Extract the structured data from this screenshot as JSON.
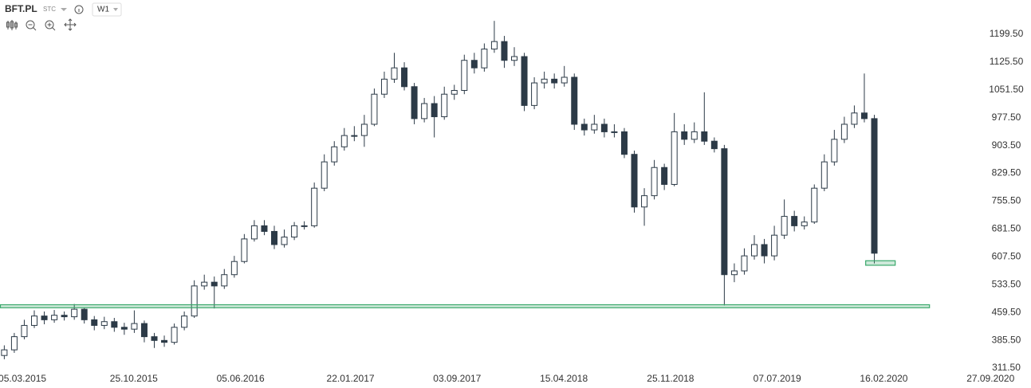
{
  "toolbar": {
    "symbol": "BFT.PL",
    "group": "STC",
    "interval": "W1"
  },
  "chart_data": {
    "type": "candlestick",
    "x": [
      "2015-01-26",
      "2015-02-16",
      "2015-03-09",
      "2015-03-30",
      "2015-04-20",
      "2015-05-11",
      "2015-06-01",
      "2015-06-22",
      "2015-07-13",
      "2015-08-03",
      "2015-08-24",
      "2015-09-14",
      "2015-10-05",
      "2015-10-26",
      "2015-11-16",
      "2015-12-07",
      "2015-12-28",
      "2016-01-18",
      "2016-02-08",
      "2016-02-29",
      "2016-03-21",
      "2016-04-11",
      "2016-05-02",
      "2016-05-23",
      "2016-06-13",
      "2016-07-04",
      "2016-07-25",
      "2016-08-15",
      "2016-09-05",
      "2016-09-26",
      "2016-10-17",
      "2016-11-07",
      "2016-11-28",
      "2016-12-19",
      "2017-01-09",
      "2017-01-30",
      "2017-02-20",
      "2017-03-13",
      "2017-04-03",
      "2017-04-24",
      "2017-05-15",
      "2017-06-05",
      "2017-06-26",
      "2017-07-17",
      "2017-08-07",
      "2017-08-28",
      "2017-09-18",
      "2017-10-09",
      "2017-10-30",
      "2017-11-20",
      "2017-12-11",
      "2018-01-01",
      "2018-01-22",
      "2018-02-12",
      "2018-03-05",
      "2018-03-26",
      "2018-04-16",
      "2018-05-07",
      "2018-05-28",
      "2018-06-18",
      "2018-07-09",
      "2018-07-30",
      "2018-08-20",
      "2018-09-10",
      "2018-10-01",
      "2018-10-22",
      "2018-11-12",
      "2018-12-03",
      "2018-12-24",
      "2019-01-14",
      "2019-02-04",
      "2019-02-25",
      "2019-03-18",
      "2019-04-08",
      "2019-04-29",
      "2019-05-20",
      "2019-06-10",
      "2019-07-01",
      "2019-07-22",
      "2019-08-12",
      "2019-09-02",
      "2019-09-23",
      "2019-10-14",
      "2019-11-04",
      "2019-11-25",
      "2019-12-16",
      "2020-01-06",
      "2020-01-27"
    ],
    "open": [
      345,
      360,
      395,
      425,
      450,
      440,
      452,
      448,
      468,
      440,
      425,
      435,
      420,
      415,
      430,
      395,
      385,
      380,
      420,
      450,
      530,
      540,
      530,
      560,
      595,
      655,
      690,
      675,
      640,
      660,
      690,
      690,
      790,
      860,
      900,
      930,
      930,
      960,
      1040,
      1080,
      1110,
      1060,
      975,
      1015,
      980,
      1040,
      1050,
      1130,
      1110,
      1160,
      1180,
      1130,
      1140,
      1010,
      1070,
      1080,
      1070,
      1085,
      960,
      945,
      960,
      940,
      940,
      880,
      740,
      770,
      845,
      800,
      940,
      920,
      940,
      915,
      895,
      560,
      570,
      610,
      640,
      610,
      665,
      715,
      690,
      700,
      790,
      860,
      920,
      960,
      990,
      975
    ],
    "high": [
      372,
      405,
      440,
      465,
      462,
      466,
      462,
      482,
      472,
      450,
      448,
      445,
      432,
      465,
      438,
      405,
      398,
      430,
      462,
      545,
      560,
      555,
      575,
      610,
      668,
      705,
      705,
      690,
      680,
      700,
      702,
      805,
      880,
      915,
      950,
      955,
      985,
      1055,
      1100,
      1150,
      1125,
      1070,
      1030,
      1035,
      1060,
      1065,
      1145,
      1150,
      1175,
      1235,
      1195,
      1165,
      1150,
      1085,
      1100,
      1095,
      1115,
      1095,
      975,
      985,
      975,
      960,
      950,
      890,
      790,
      865,
      855,
      990,
      960,
      965,
      1045,
      925,
      905,
      590,
      630,
      665,
      655,
      690,
      760,
      730,
      715,
      800,
      880,
      945,
      980,
      1010,
      1095,
      985
    ],
    "low": [
      335,
      352,
      388,
      418,
      428,
      432,
      438,
      440,
      430,
      412,
      415,
      408,
      400,
      405,
      380,
      365,
      368,
      374,
      412,
      445,
      520,
      470,
      522,
      552,
      590,
      648,
      665,
      628,
      632,
      652,
      680,
      685,
      782,
      850,
      890,
      915,
      900,
      955,
      1030,
      1070,
      1050,
      960,
      965,
      925,
      972,
      1025,
      1040,
      1095,
      1100,
      1150,
      1110,
      1115,
      995,
      1000,
      1055,
      1055,
      1060,
      945,
      930,
      935,
      925,
      925,
      870,
      725,
      690,
      760,
      785,
      795,
      905,
      910,
      905,
      885,
      478,
      540,
      560,
      600,
      590,
      598,
      655,
      675,
      680,
      695,
      782,
      850,
      910,
      950,
      965,
      590
    ],
    "close": [
      360,
      395,
      425,
      450,
      440,
      452,
      448,
      468,
      440,
      425,
      435,
      420,
      415,
      430,
      395,
      385,
      380,
      420,
      450,
      530,
      540,
      530,
      560,
      595,
      655,
      690,
      675,
      640,
      660,
      690,
      690,
      790,
      860,
      900,
      930,
      930,
      960,
      1040,
      1080,
      1110,
      1060,
      975,
      1015,
      980,
      1040,
      1050,
      1130,
      1110,
      1160,
      1180,
      1130,
      1140,
      1010,
      1070,
      1080,
      1070,
      1085,
      960,
      945,
      960,
      940,
      940,
      880,
      740,
      770,
      845,
      800,
      940,
      920,
      940,
      915,
      895,
      560,
      570,
      610,
      640,
      610,
      665,
      715,
      690,
      700,
      790,
      860,
      920,
      960,
      990,
      975,
      617
    ],
    "up_color": "#ffffff",
    "down_color": "#2c3a47",
    "wick_color": "#2c3a47",
    "zones": [
      {
        "x0": "2015-01-17",
        "x1": "2020-05-21",
        "low": 472,
        "high": 480
      },
      {
        "x0": "2020-01-08",
        "x1": "2020-03-10",
        "low": 585,
        "high": 597
      }
    ],
    "zone_color": "#3aa86b",
    "xlim": [
      "2015-01-17",
      "2020-12-21"
    ],
    "xticks": [
      {
        "value": "2015-03-05",
        "label": "05.03.2015"
      },
      {
        "value": "2015-10-25",
        "label": "25.10.2015"
      },
      {
        "value": "2016-06-05",
        "label": "05.06.2016"
      },
      {
        "value": "2017-01-22",
        "label": "22.01.2017"
      },
      {
        "value": "2017-09-03",
        "label": "03.09.2017"
      },
      {
        "value": "2018-04-15",
        "label": "15.04.2018"
      },
      {
        "value": "2018-11-25",
        "label": "25.11.2018"
      },
      {
        "value": "2019-07-07",
        "label": "07.07.2019"
      },
      {
        "value": "2020-02-16",
        "label": "16.02.2020"
      },
      {
        "value": "2020-09-27",
        "label": "27.09.2020"
      }
    ],
    "ylim": [
      311.5,
      1290.5
    ],
    "yticks": [
      {
        "value": 311.5,
        "label": "311.50"
      },
      {
        "value": 385.5,
        "label": "385.50"
      },
      {
        "value": 459.5,
        "label": "459.50"
      },
      {
        "value": 533.5,
        "label": "533.50"
      },
      {
        "value": 607.5,
        "label": "607.50"
      },
      {
        "value": 681.5,
        "label": "681.50"
      },
      {
        "value": 755.5,
        "label": "755.50"
      },
      {
        "value": 829.5,
        "label": "829.50"
      },
      {
        "value": 903.5,
        "label": "903.50"
      },
      {
        "value": 977.5,
        "label": "977.50"
      },
      {
        "value": 1051.5,
        "label": "1051.50"
      },
      {
        "value": 1125.5,
        "label": "1125.50"
      },
      {
        "value": 1199.5,
        "label": "1199.50"
      }
    ]
  }
}
